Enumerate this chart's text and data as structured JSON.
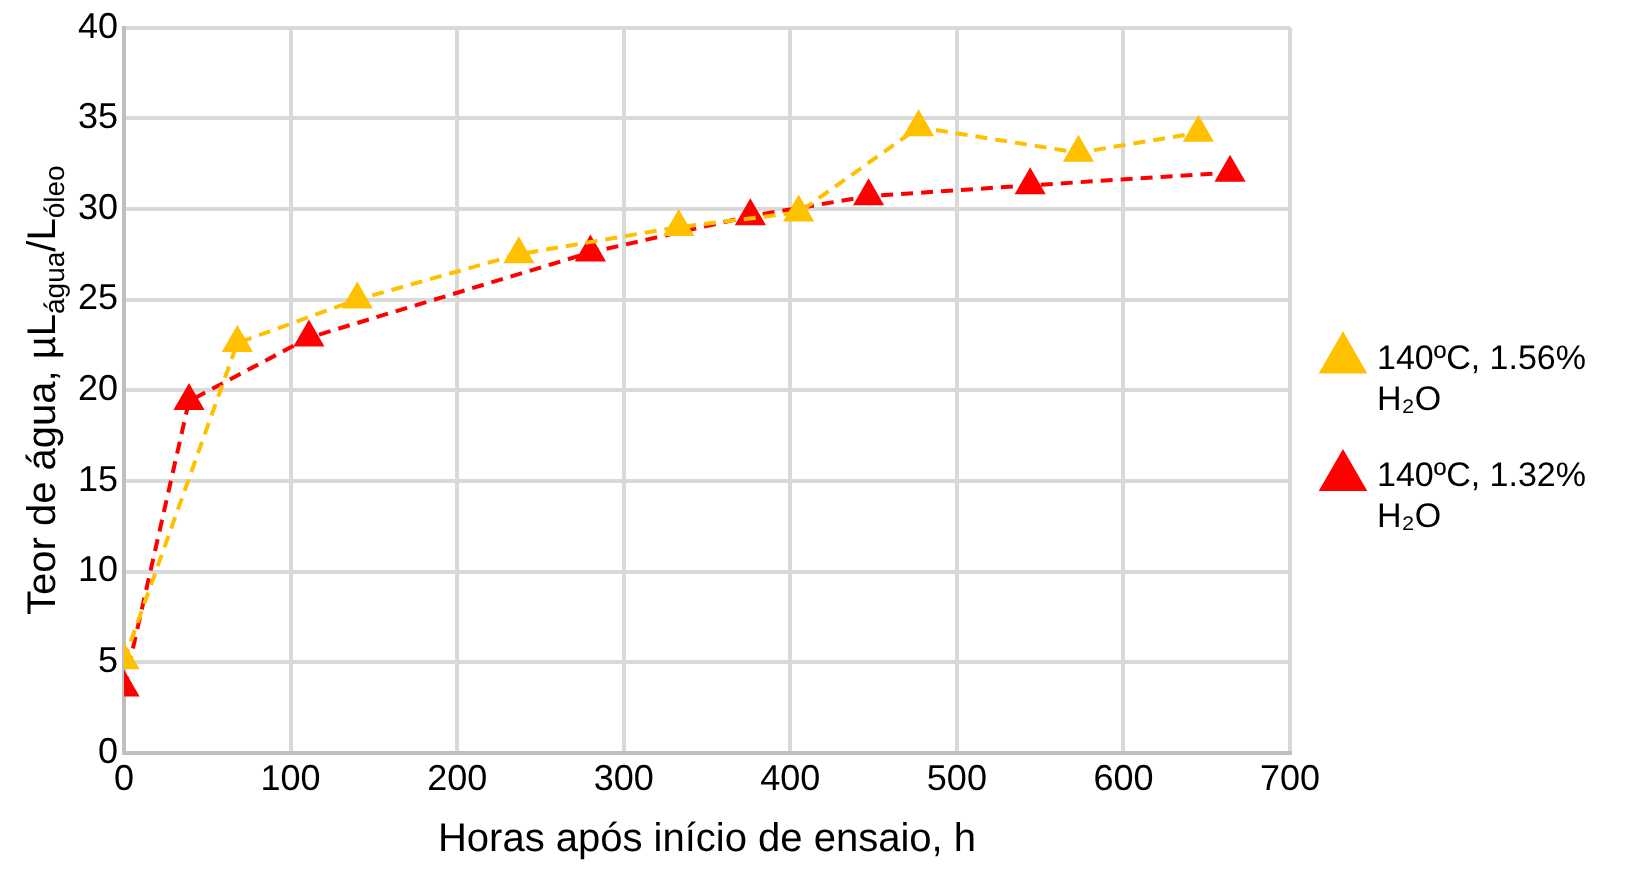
{
  "chart_data": {
    "type": "line",
    "xlabel": "Horas após início de ensaio, h",
    "ylabel": "Teor de água, µL$_{água}$/L$_{óleo}$",
    "xlim": [
      0,
      700
    ],
    "xticks": [
      0,
      100,
      200,
      300,
      400,
      500,
      600,
      700
    ],
    "ylim": [
      0,
      40
    ],
    "yticks": [
      0,
      5,
      10,
      15,
      20,
      25,
      30,
      35,
      40
    ],
    "grid": true,
    "legend": "right",
    "marker": "triangle",
    "line_style": "dashed",
    "series": [
      {
        "name": "140ºC, 1.56% H₂O",
        "color": "#ffc000",
        "x": [
          0,
          68,
          140,
          237,
          333,
          405,
          477,
          573,
          645
        ],
        "values": [
          5.1,
          22.6,
          25.0,
          27.5,
          29.0,
          29.8,
          34.5,
          33.1,
          34.2
        ]
      },
      {
        "name": "140ºC, 1.32% H₂O",
        "color": "#ff0000",
        "x": [
          0,
          39,
          111,
          280,
          376,
          447,
          544,
          664
        ],
        "values": [
          3.6,
          19.4,
          22.9,
          27.6,
          29.6,
          30.7,
          31.3,
          32.0
        ]
      }
    ]
  }
}
